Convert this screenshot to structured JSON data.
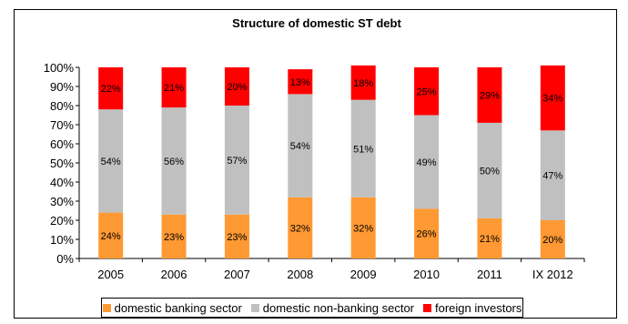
{
  "chart_data": {
    "type": "bar",
    "stacked": true,
    "percent": true,
    "title": "Structure of domestic ST debt",
    "categories": [
      "2005",
      "2006",
      "2007",
      "2008",
      "2009",
      "2010",
      "2011",
      "IX 2012"
    ],
    "series": [
      {
        "name": "domestic banking sector",
        "color": "#FF9933",
        "values": [
          24,
          23,
          23,
          32,
          32,
          26,
          21,
          20
        ]
      },
      {
        "name": "domestic non-banking sector",
        "color": "#C0C0C0",
        "values": [
          54,
          56,
          57,
          54,
          51,
          49,
          50,
          47
        ]
      },
      {
        "name": "foreign investors",
        "color": "#FF0000",
        "values": [
          22,
          21,
          20,
          13,
          18,
          25,
          29,
          34
        ]
      }
    ],
    "yticks": [
      "0%",
      "10%",
      "20%",
      "30%",
      "40%",
      "50%",
      "60%",
      "70%",
      "80%",
      "90%",
      "100%"
    ],
    "ylim": [
      0,
      100
    ],
    "grid": false,
    "legend_position": "bottom"
  }
}
